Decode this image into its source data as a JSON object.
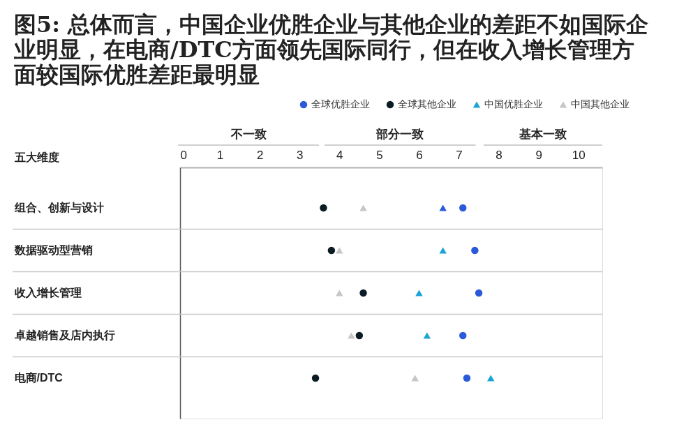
{
  "chart_data": {
    "type": "scatter",
    "orientation": "horizontal",
    "title": "图5: 总体而言，中国企业优胜企业与其他企业的差距不如国际企业明显，在电商/DTC方面领先国际同行，但在收入增长管理方面较国际优胜差距最明显",
    "ylabel": "五大维度",
    "categories": [
      "组合、创新与设计",
      "数据驱动型营销",
      "收入增长管理",
      "卓越销售及店内执行",
      "电商/DTC"
    ],
    "series": [
      {
        "name": "全球优胜企业",
        "color": "#2a5ad8",
        "marker": "circle",
        "values": [
          7.1,
          7.4,
          7.5,
          7.1,
          7.2
        ]
      },
      {
        "name": "全球其他企业",
        "color": "#0b1c24",
        "marker": "circle",
        "values": [
          3.6,
          3.8,
          4.6,
          4.5,
          3.4
        ]
      },
      {
        "name": "中国优胜企业",
        "color": "#1ba3d6",
        "marker": "triangle",
        "colors": [
          "#2a5ad8",
          "#1ba3d6",
          "#1ba3d6",
          "#1ba3d6",
          "#1ba3d6"
        ],
        "values": [
          6.6,
          6.6,
          6.0,
          6.2,
          7.8
        ]
      },
      {
        "name": "中国其他企业",
        "color": "#c6c6c6",
        "marker": "triangle",
        "values": [
          4.6,
          4.0,
          4.0,
          4.3,
          5.9
        ]
      }
    ],
    "xlim": [
      0,
      10.6
    ],
    "xticks": [
      0,
      1,
      2,
      3,
      4,
      5,
      6,
      7,
      8,
      9,
      10
    ],
    "annotations": [
      "不一致",
      "部分一致",
      "基本一致"
    ],
    "grid": "y",
    "legend": "top right"
  }
}
